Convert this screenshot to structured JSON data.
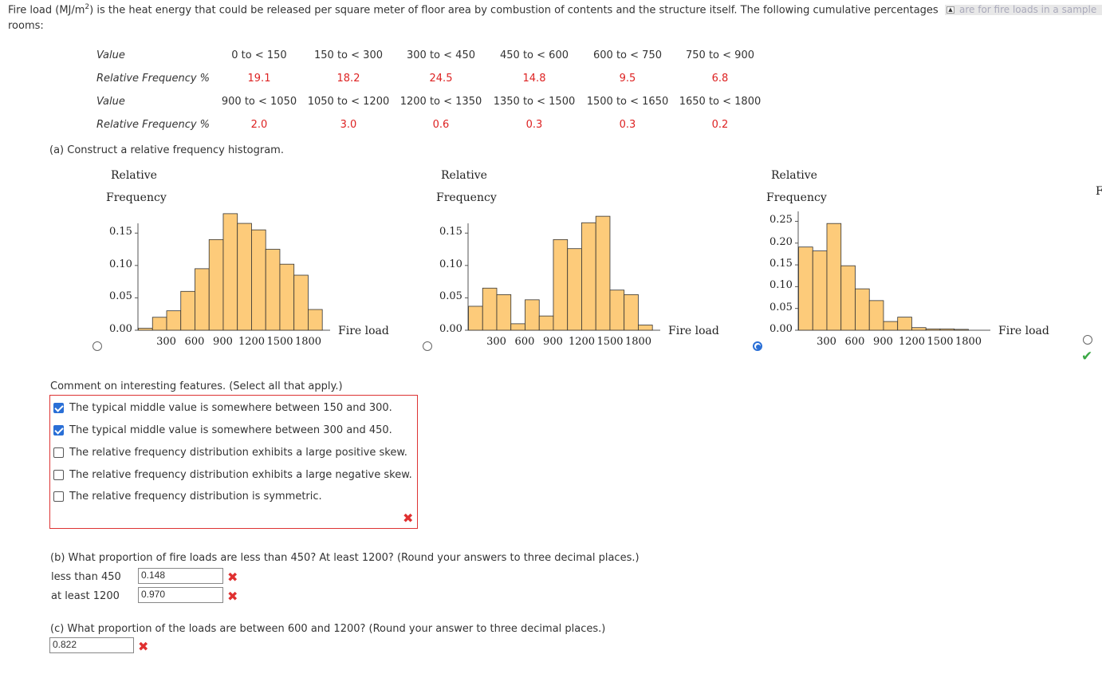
{
  "intro": {
    "line1_pre": "Fire load (MJ/m",
    "line1_sup": "2",
    "line1_post": ") is the heat energy that could be released per square meter of floor area by combustion of contents and the structure itself. The following cumulative percentages",
    "line1_cut": "are for fire loads in a sample",
    "line2": "rooms:"
  },
  "table": {
    "value_label": "Value",
    "freq_label": "Relative Frequency %",
    "row1_values": [
      "0 to < 150",
      "150 to < 300",
      "300 to < 450",
      "450 to < 600",
      "600 to < 750",
      "750 to < 900"
    ],
    "row1_freqs": [
      "19.1",
      "18.2",
      "24.5",
      "14.8",
      "9.5",
      "6.8"
    ],
    "row2_values": [
      "900 to < 1050",
      "1050 to < 1200",
      "1200 to < 1350",
      "1350 to < 1500",
      "1500 to < 1650",
      "1650 to < 1800"
    ],
    "row2_freqs": [
      "2.0",
      "3.0",
      "0.6",
      "0.3",
      "0.3",
      "0.2"
    ]
  },
  "part_a": {
    "prompt": "(a) Construct a relative frequency histogram.",
    "selected_option": 3,
    "correct_marker": "✔"
  },
  "chart_data": [
    {
      "type": "bar",
      "ylabel_line1": "Relative",
      "ylabel_line2": "Frequency",
      "xlabel": "Fire load",
      "x_ticks": [
        "300",
        "600",
        "900",
        "1200",
        "1500",
        "1800"
      ],
      "y_ticks": [
        "0.00",
        "0.05",
        "0.10",
        "0.15"
      ],
      "ylim": [
        0,
        0.17
      ],
      "bin_width": 150,
      "values": [
        0.003,
        0.02,
        0.03,
        0.06,
        0.095,
        0.14,
        0.18,
        0.165,
        0.155,
        0.125,
        0.102,
        0.085,
        0.032
      ]
    },
    {
      "type": "bar",
      "ylabel_line1": "Relative",
      "ylabel_line2": "Frequency",
      "xlabel": "Fire load",
      "x_ticks": [
        "300",
        "600",
        "900",
        "1200",
        "1500",
        "1800"
      ],
      "y_ticks": [
        "0.00",
        "0.05",
        "0.10",
        "0.15"
      ],
      "ylim": [
        0,
        0.17
      ],
      "bin_width": 150,
      "values": [
        0.037,
        0.065,
        0.055,
        0.01,
        0.047,
        0.022,
        0.14,
        0.126,
        0.166,
        0.176,
        0.062,
        0.055,
        0.008
      ]
    },
    {
      "type": "bar",
      "ylabel_line1": "Relative",
      "ylabel_line2": "Frequency",
      "xlabel": "Fire load",
      "x_ticks": [
        "300",
        "600",
        "900",
        "1200",
        "1500",
        "1800"
      ],
      "y_ticks": [
        "0.00",
        "0.05",
        "0.10",
        "0.15",
        "0.20",
        "0.25"
      ],
      "ylim": [
        0,
        0.26
      ],
      "bin_width": 150,
      "values": [
        0.191,
        0.182,
        0.245,
        0.148,
        0.095,
        0.068,
        0.02,
        0.03,
        0.006,
        0.003,
        0.003,
        0.002
      ]
    }
  ],
  "comment": {
    "prompt": "Comment on interesting features. (Select all that apply.)",
    "options": [
      {
        "label": "The typical middle value is somewhere between 150 and 300.",
        "checked": true
      },
      {
        "label": "The typical middle value is somewhere between 300 and 450.",
        "checked": true
      },
      {
        "label": "The relative frequency distribution exhibits a large positive skew.",
        "checked": false
      },
      {
        "label": "The relative frequency distribution exhibits a large negative skew.",
        "checked": false
      },
      {
        "label": "The relative frequency distribution is symmetric.",
        "checked": false
      }
    ],
    "result_mark": "✖"
  },
  "part_b": {
    "prompt": "(b) What proportion of fire loads are less than 450? At least 1200? (Round your answers to three decimal places.)",
    "less_label": "less than 450",
    "less_value": "0.148",
    "atleast_label": "at least 1200",
    "atleast_value": "0.970",
    "mark": "✖"
  },
  "part_c": {
    "prompt": "(c) What proportion of the loads are between 600 and 1200? (Round your answer to three decimal places.)",
    "value": "0.822",
    "mark": "✖"
  },
  "colors": {
    "bar_fill": "#fdcb7a",
    "bar_stroke": "#333333",
    "error": "#e03030",
    "correct": "#3aa845",
    "selected": "#2a6fd6"
  }
}
